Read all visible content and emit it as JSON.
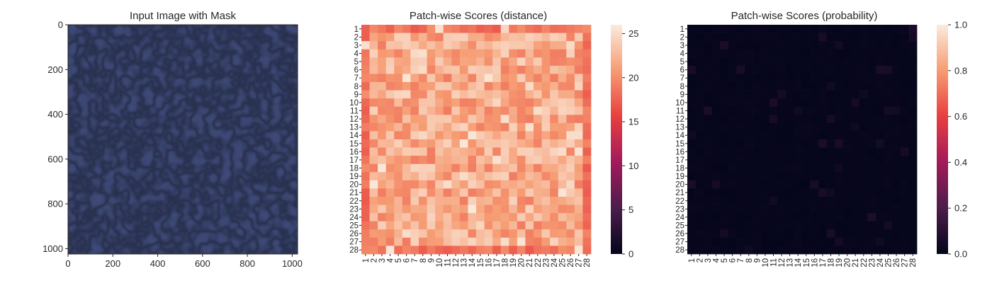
{
  "chart_data": [
    {
      "type": "image",
      "title": "Input Image with Mask",
      "x_ticks": [
        0,
        200,
        400,
        600,
        800,
        1000
      ],
      "y_ticks": [
        0,
        200,
        400,
        600,
        800,
        1000
      ],
      "xlim": [
        0,
        1024
      ],
      "ylim": [
        1024,
        0
      ],
      "content": "dark blue leather texture",
      "base_color": "#3e4a78"
    },
    {
      "type": "heatmap",
      "title": "Patch-wise Scores (distance)",
      "rows": 28,
      "cols": 28,
      "row_labels": [
        "1",
        "2",
        "3",
        "4",
        "5",
        "6",
        "7",
        "8",
        "9",
        "10",
        "11",
        "12",
        "13",
        "14",
        "15",
        "16",
        "17",
        "18",
        "19",
        "20",
        "21",
        "22",
        "23",
        "24",
        "25",
        "26",
        "27",
        "28"
      ],
      "col_labels": [
        "1",
        "2",
        "3",
        "4",
        "5",
        "6",
        "7",
        "8",
        "9",
        "10",
        "11",
        "12",
        "13",
        "14",
        "15",
        "16",
        "17",
        "18",
        "19",
        "20",
        "21",
        "22",
        "23",
        "24",
        "25",
        "26",
        "27",
        "28"
      ],
      "value_range": [
        0,
        26
      ],
      "typical_value": 22,
      "colorbar_ticks": [
        0,
        5,
        10,
        15,
        20,
        25
      ],
      "colormap": "rocket"
    },
    {
      "type": "heatmap",
      "title": "Patch-wise Scores (probability)",
      "rows": 28,
      "cols": 28,
      "row_labels": [
        "1",
        "2",
        "3",
        "4",
        "5",
        "6",
        "7",
        "8",
        "9",
        "10",
        "11",
        "12",
        "13",
        "14",
        "15",
        "16",
        "17",
        "18",
        "19",
        "20",
        "21",
        "22",
        "23",
        "24",
        "25",
        "26",
        "27",
        "28"
      ],
      "col_labels": [
        "1",
        "2",
        "3",
        "4",
        "5",
        "6",
        "7",
        "8",
        "9",
        "10",
        "11",
        "12",
        "13",
        "14",
        "15",
        "16",
        "17",
        "18",
        "19",
        "20",
        "21",
        "22",
        "23",
        "24",
        "25",
        "26",
        "27",
        "28"
      ],
      "value_range": [
        0.0,
        1.0
      ],
      "typical_value": 0.01,
      "colorbar_ticks": [
        "0.0",
        "0.2",
        "0.4",
        "0.6",
        "0.8",
        "1.0"
      ],
      "colormap": "rocket"
    }
  ]
}
